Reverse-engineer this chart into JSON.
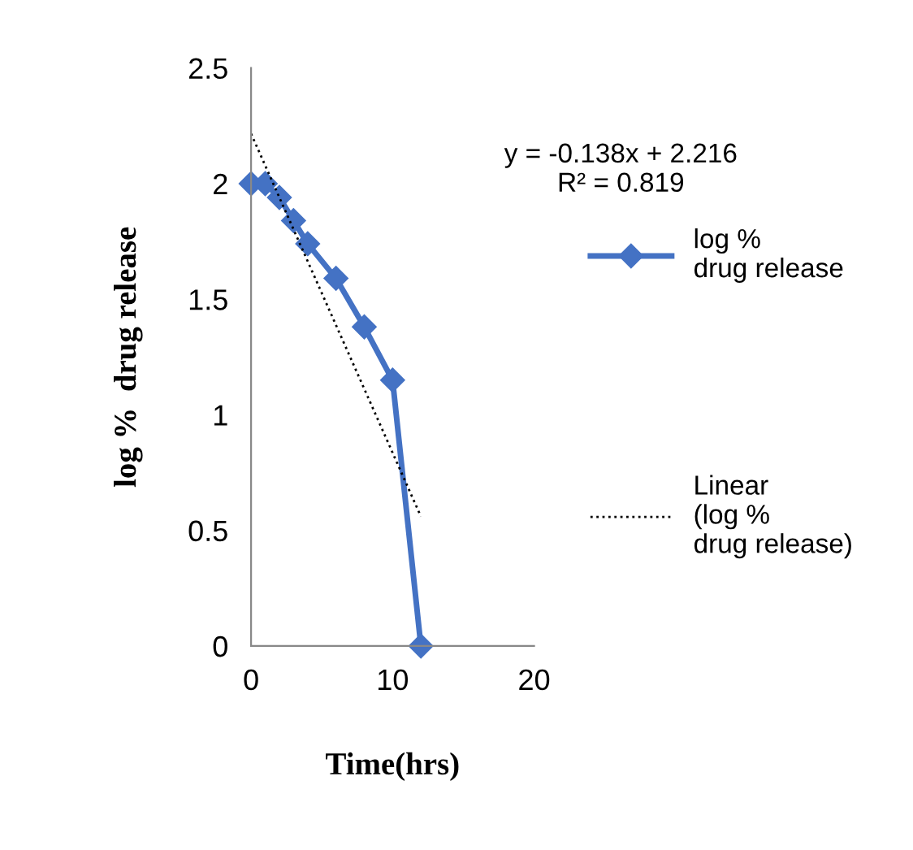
{
  "chart_data": {
    "type": "line",
    "xlabel": "Time(hrs)",
    "ylabel": "log %  drug release",
    "xlim": [
      0,
      20
    ],
    "xticks": [
      0,
      10,
      20
    ],
    "ylim": [
      0,
      2.5
    ],
    "yticks": [
      0,
      0.5,
      1,
      1.5,
      2,
      2.5
    ],
    "series": [
      {
        "name": "log % drug release",
        "color": "#4472c4",
        "x": [
          0,
          1,
          2,
          3,
          4,
          6,
          8,
          10,
          12
        ],
        "values": [
          2.0,
          2.0,
          1.94,
          1.84,
          1.74,
          1.59,
          1.38,
          1.15,
          0
        ],
        "marker": "diamond",
        "line_style": "solid"
      },
      {
        "name": "Linear (log % drug release)",
        "type": "line",
        "color": "#000000",
        "x": [
          0,
          12
        ],
        "values": [
          2.216,
          0.56
        ],
        "marker": "none",
        "line_style": "dotted"
      }
    ],
    "annotations": [
      "y = -0.138x + 2.216\nR² = 0.819"
    ],
    "legend": "right",
    "grid": false
  }
}
